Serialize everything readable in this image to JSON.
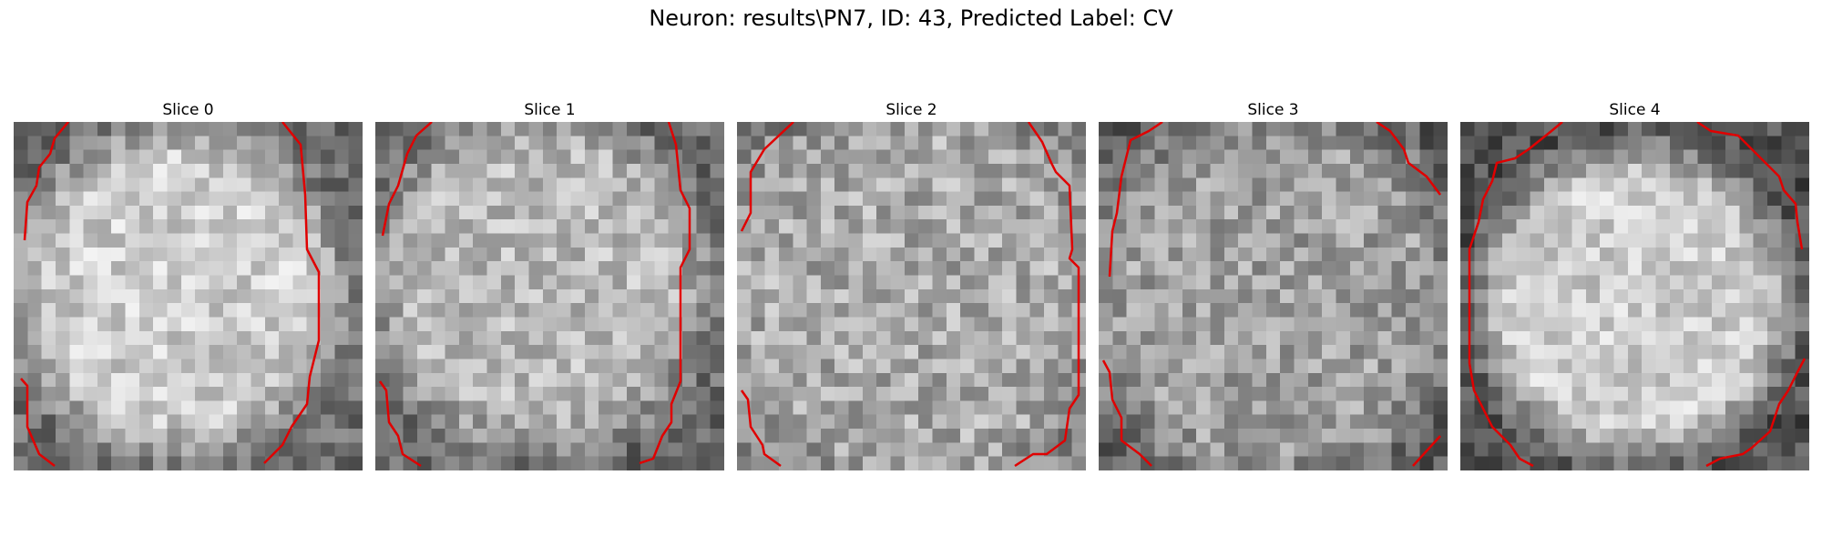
{
  "figure": {
    "suptitle": "Neuron: results\\PN7, ID: 43, Predicted Label: CV",
    "contour_color": "#e00000"
  },
  "panels": [
    {
      "title": "Slice 0"
    },
    {
      "title": "Slice 1"
    },
    {
      "title": "Slice 2"
    },
    {
      "title": "Slice 3"
    },
    {
      "title": "Slice 4"
    }
  ]
}
